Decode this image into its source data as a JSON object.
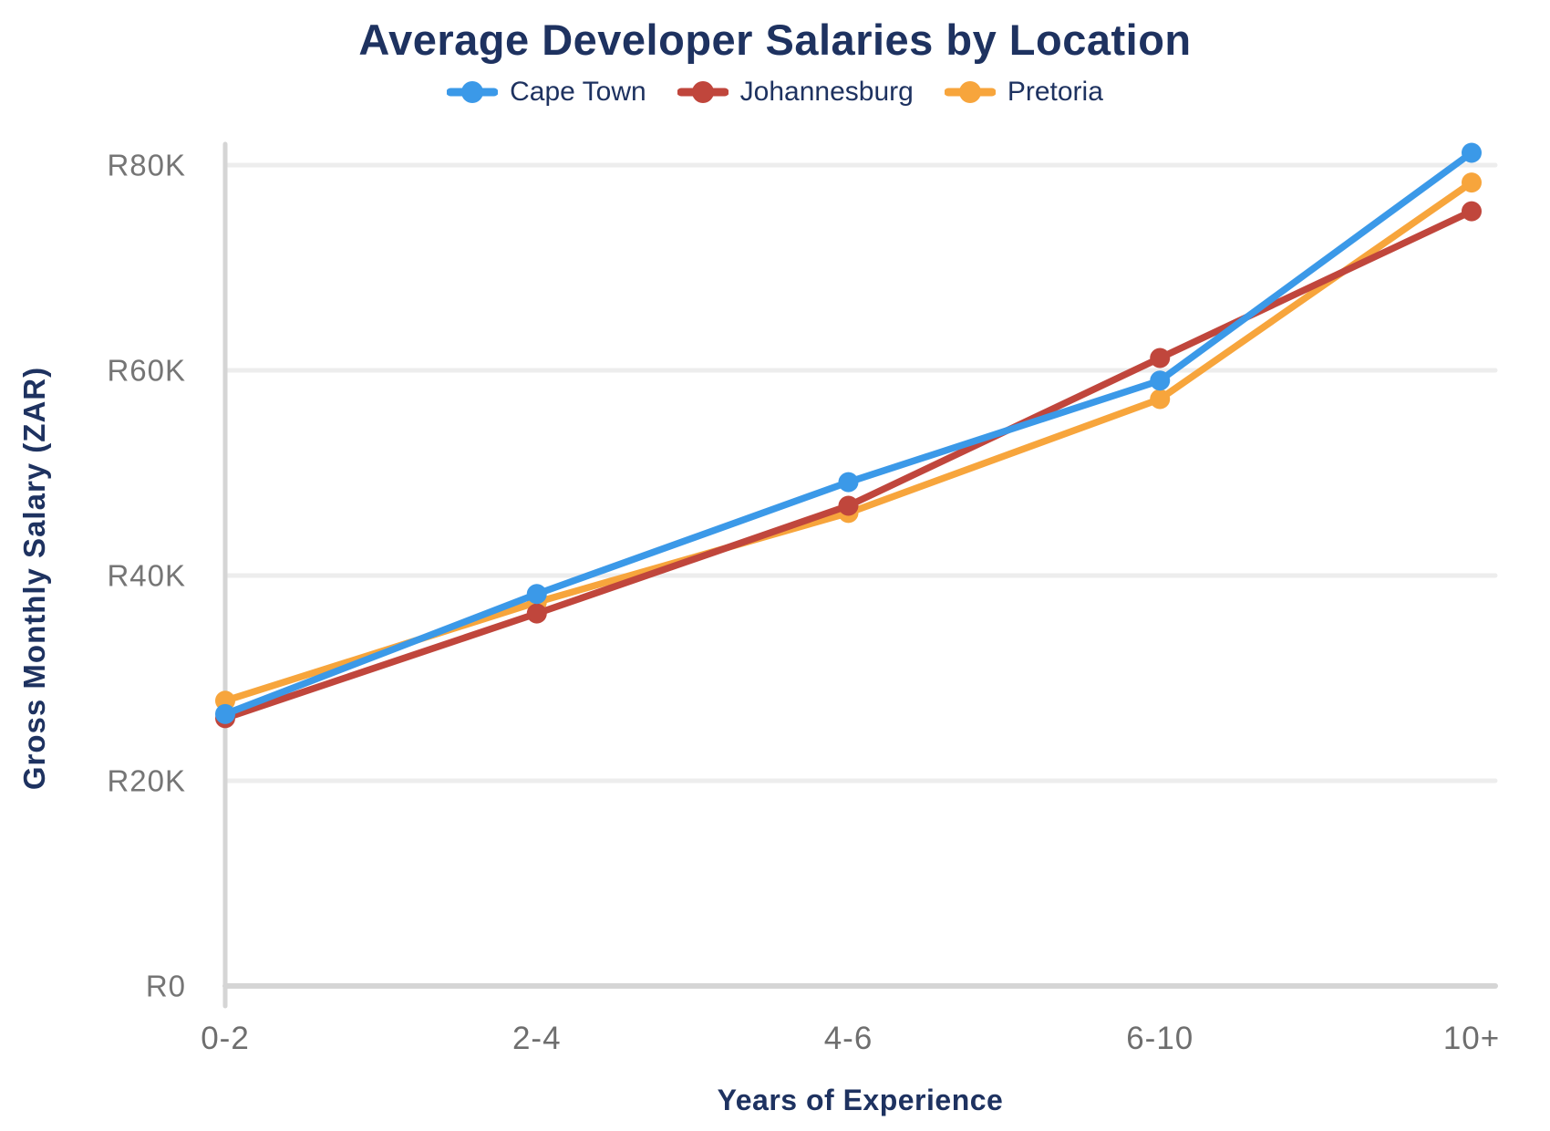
{
  "chart_data": {
    "type": "line",
    "title": "Average Developer Salaries by Location",
    "xlabel": "Years of Experience",
    "ylabel": "Gross Monthly Salary (ZAR)",
    "categories": [
      "0-2",
      "2-4",
      "4-6",
      "6-10",
      "10+"
    ],
    "series": [
      {
        "name": "Cape Town",
        "color": "#3b99e8",
        "values": [
          26500,
          38200,
          49100,
          59000,
          81200
        ]
      },
      {
        "name": "Johannesburg",
        "color": "#c0463c",
        "values": [
          26100,
          36300,
          46800,
          61200,
          75500
        ]
      },
      {
        "name": "Pretoria",
        "color": "#f7a53c",
        "values": [
          27800,
          37400,
          46100,
          57200,
          78300
        ]
      }
    ],
    "y_ticks": [
      {
        "value": 0,
        "label": "R0"
      },
      {
        "value": 20000,
        "label": "R20K"
      },
      {
        "value": 40000,
        "label": "R40K"
      },
      {
        "value": 60000,
        "label": "R60K"
      },
      {
        "value": 80000,
        "label": "R80K"
      }
    ],
    "ylim": [
      0,
      82000
    ],
    "grid": true,
    "legend_position": "top",
    "colors": {
      "title_navy": "#1e3260",
      "tick_gray": "#757575",
      "x_tick_gray": "#6e6e6e",
      "gridline": "#ededed",
      "axis_line": "#d5d5d5"
    }
  }
}
